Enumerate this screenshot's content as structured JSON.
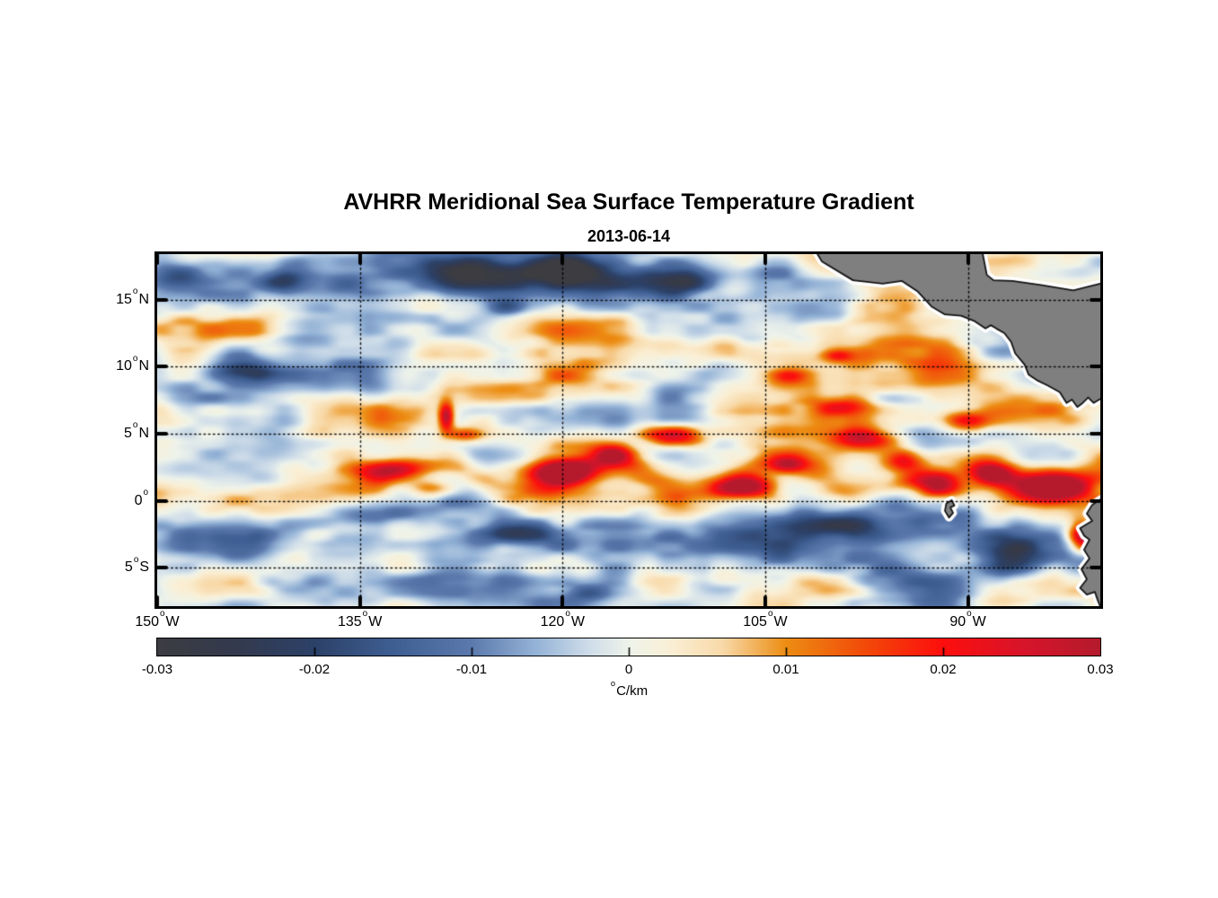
{
  "header": {
    "title": "AVHRR Meridional Sea Surface Temperature Gradient",
    "date": "2013-06-14"
  },
  "chart_data": {
    "type": "heatmap",
    "title": "AVHRR Meridional Sea Surface Temperature Gradient",
    "date": "2013-06-14",
    "variable": "Meridional Sea Surface Temperature Gradient",
    "x_axis": {
      "range_lon": [
        -150,
        -80.2
      ],
      "ticks": [
        {
          "lon": -150,
          "label": "150°W"
        },
        {
          "lon": -135,
          "label": "135°W"
        },
        {
          "lon": -120,
          "label": "120°W"
        },
        {
          "lon": -105,
          "label": "105°W"
        },
        {
          "lon": -90,
          "label": "90°W"
        }
      ]
    },
    "y_axis": {
      "range_lat": [
        -7.86,
        18.4
      ],
      "ticks": [
        {
          "lat": 15,
          "label": "15°N"
        },
        {
          "lat": 10,
          "label": "10°N"
        },
        {
          "lat": 5,
          "label": "5°N"
        },
        {
          "lat": 0,
          "label": "0°"
        },
        {
          "lat": -5,
          "label": "5°S"
        }
      ]
    },
    "grid": {
      "style": "dotted",
      "color": "#000000",
      "on": true
    },
    "colorbar": {
      "min": -0.03,
      "max": 0.03,
      "tick_values": [
        -0.03,
        -0.02,
        -0.01,
        0,
        0.01,
        0.02,
        0.03
      ],
      "tick_labels": [
        "-0.03",
        "-0.02",
        "-0.01",
        "0",
        "0.01",
        "0.02",
        "0.03"
      ],
      "unit": "°C/km",
      "orientation": "horizontal"
    },
    "colormap_stops": [
      {
        "t": 0.0,
        "c": "#3c3c41"
      },
      {
        "t": 0.085,
        "c": "#333a4e"
      },
      {
        "t": 0.167,
        "c": "#2c4168"
      },
      {
        "t": 0.25,
        "c": "#3e5e92"
      },
      {
        "t": 0.333,
        "c": "#5b79ac"
      },
      {
        "t": 0.4,
        "c": "#93b2d6"
      },
      {
        "t": 0.458,
        "c": "#cfdde9"
      },
      {
        "t": 0.5,
        "c": "#eef3ea"
      },
      {
        "t": 0.545,
        "c": "#faefd5"
      },
      {
        "t": 0.6,
        "c": "#f8d9a8"
      },
      {
        "t": 0.667,
        "c": "#ec8d12"
      },
      {
        "t": 0.75,
        "c": "#f24a09"
      },
      {
        "t": 0.833,
        "c": "#fd0e0d"
      },
      {
        "t": 0.917,
        "c": "#d8142a"
      },
      {
        "t": 1.0,
        "c": "#b41a2c"
      }
    ],
    "land": {
      "fill": "#7f7f7f",
      "outline": "#141414",
      "coast_halo": "#ffffff",
      "polygons": {
        "central_america": [
          [
            -101.8,
            19.5
          ],
          [
            -100.8,
            17.85
          ],
          [
            -98.5,
            16.45
          ],
          [
            -96.3,
            16.2
          ],
          [
            -94.9,
            16.4
          ],
          [
            -93.7,
            15.6
          ],
          [
            -92.7,
            14.5
          ],
          [
            -91.7,
            13.9
          ],
          [
            -90.5,
            13.8
          ],
          [
            -89.5,
            13.4
          ],
          [
            -88.7,
            12.85
          ],
          [
            -88.3,
            13.1
          ],
          [
            -87.9,
            12.85
          ],
          [
            -87.3,
            12.5
          ],
          [
            -86.8,
            11.85
          ],
          [
            -86.5,
            11.0
          ],
          [
            -85.8,
            10.15
          ],
          [
            -85.5,
            9.4
          ],
          [
            -84.9,
            9.0
          ],
          [
            -84.1,
            8.6
          ],
          [
            -83.2,
            8.1
          ],
          [
            -82.7,
            7.3
          ],
          [
            -82.3,
            7.55
          ],
          [
            -81.9,
            7.0
          ],
          [
            -81.5,
            7.3
          ],
          [
            -81.1,
            7.7
          ],
          [
            -80.7,
            7.3
          ],
          [
            -80.2,
            7.6
          ],
          [
            -79.4,
            7.7
          ],
          [
            -79.4,
            16.2
          ],
          [
            -80.2,
            16.2
          ],
          [
            -82.2,
            15.7
          ],
          [
            -84.6,
            16.1
          ],
          [
            -86.7,
            16.4
          ],
          [
            -88.1,
            16.45
          ],
          [
            -88.6,
            16.85
          ],
          [
            -88.9,
            18.4
          ],
          [
            -88.9,
            19.5
          ]
        ],
        "south_america": [
          [
            -79.4,
            0.5
          ],
          [
            -80.2,
            0.1
          ],
          [
            -80.8,
            -0.3
          ],
          [
            -81.2,
            -0.95
          ],
          [
            -80.8,
            -1.5
          ],
          [
            -81.7,
            -2.05
          ],
          [
            -81.4,
            -2.6
          ],
          [
            -81.0,
            -2.9
          ],
          [
            -81.4,
            -3.65
          ],
          [
            -81.0,
            -4.3
          ],
          [
            -81.6,
            -5.1
          ],
          [
            -81.2,
            -5.85
          ],
          [
            -81.7,
            -6.5
          ],
          [
            -81.2,
            -7.0
          ],
          [
            -80.6,
            -6.8
          ],
          [
            -80.4,
            -7.4
          ],
          [
            -80.2,
            -7.9
          ],
          [
            -79.4,
            -8.5
          ]
        ],
        "galapagos": [
          [
            -91.6,
            -0.2
          ],
          [
            -91.2,
            0.05
          ],
          [
            -91.0,
            -0.35
          ],
          [
            -91.3,
            -0.5
          ],
          [
            -91.1,
            -0.9
          ],
          [
            -91.4,
            -1.25
          ],
          [
            -91.7,
            -0.75
          ]
        ]
      }
    },
    "field_model": {
      "units": "degC/km",
      "bands": [
        {
          "kind": "equatorial_front_meander",
          "amp": 0.011,
          "lat_center": 1.7,
          "lat_width": 1.25,
          "meander_amp": 1.15,
          "meander_wavelength_deg": 13,
          "meander_phase_lon": -120,
          "west_ramp": [
            -144,
            -128
          ]
        },
        {
          "kind": "north_negative",
          "amp": -0.013,
          "lat_center": 17.0,
          "lat_width": 2.4,
          "lon_center": -121,
          "lon_width": 13,
          "lon_floor": 0.25
        },
        {
          "kind": "south_negative",
          "amp": -0.0085,
          "lat_center": -2.8,
          "lat_width": 2.1
        },
        {
          "kind": "mid_cream",
          "amp": 0.0035,
          "lat_center": 6.3,
          "lat_width": 2.6
        }
      ],
      "features": [
        [
          -133.2,
          2.3,
          2.6,
          0.75,
          0.02
        ],
        [
          -129.6,
          0.9,
          1.7,
          0.65,
          0.016
        ],
        [
          -128.6,
          6.3,
          0.55,
          1.0,
          0.03
        ],
        [
          -127.2,
          4.9,
          1.3,
          0.5,
          0.012
        ],
        [
          -120.2,
          2.1,
          2.3,
          0.85,
          0.034
        ],
        [
          -116.3,
          3.4,
          1.4,
          0.7,
          0.018
        ],
        [
          -111.8,
          4.9,
          2.1,
          0.75,
          0.026
        ],
        [
          -106.2,
          1.0,
          2.1,
          0.85,
          0.032
        ],
        [
          -103.4,
          2.7,
          1.2,
          0.6,
          0.016
        ],
        [
          -97.8,
          4.6,
          2.3,
          0.8,
          0.024
        ],
        [
          -94.8,
          3.0,
          1.4,
          0.8,
          0.018
        ],
        [
          -92.2,
          1.2,
          1.9,
          0.95,
          0.036
        ],
        [
          -88.2,
          2.1,
          1.5,
          0.85,
          0.026
        ],
        [
          -83.8,
          1.1,
          2.3,
          1.1,
          0.036
        ],
        [
          -81.4,
          -2.6,
          1.2,
          1.3,
          0.04
        ],
        [
          -90.2,
          5.9,
          1.9,
          0.8,
          0.016
        ],
        [
          -99.2,
          7.1,
          2.1,
          0.7,
          0.013
        ],
        [
          -103.2,
          9.3,
          1.4,
          0.55,
          0.013
        ],
        [
          -99.6,
          10.8,
          1.0,
          0.5,
          0.013
        ],
        [
          -126.3,
          16.9,
          4.2,
          1.4,
          -0.026
        ],
        [
          -119.6,
          17.4,
          2.6,
          1.3,
          -0.028
        ],
        [
          -111.2,
          16.4,
          2.9,
          1.1,
          -0.02
        ],
        [
          -124.2,
          14.5,
          1.6,
          0.8,
          -0.016
        ],
        [
          -143.6,
          9.7,
          2.3,
          0.95,
          -0.02
        ],
        [
          -148.5,
          16.8,
          2.2,
          1.0,
          -0.011
        ],
        [
          -140.7,
          16.4,
          1.6,
          0.8,
          -0.013
        ],
        [
          -134.6,
          -1.0,
          3.2,
          0.7,
          -0.013
        ],
        [
          -123.6,
          -2.4,
          3.2,
          0.85,
          -0.017
        ],
        [
          -98.2,
          -1.9,
          4.2,
          0.95,
          -0.013
        ],
        [
          -86.6,
          -4.6,
          2.1,
          1.3,
          -0.02
        ],
        [
          -108.4,
          -6.6,
          3.1,
          0.85,
          -0.011
        ],
        [
          -118.4,
          -6.9,
          2.6,
          0.85,
          -0.011
        ]
      ],
      "noise": {
        "seed": 7,
        "amp": 0.0095,
        "octaves": [
          [
            8.5,
            3.2,
            1.0
          ],
          [
            4.0,
            1.6,
            0.6
          ],
          [
            2.0,
            0.85,
            0.35
          ]
        ],
        "band_damp": {
          "lat_center": 2.0,
          "lat_width": 1.5,
          "factor": 0.35
        }
      }
    }
  }
}
